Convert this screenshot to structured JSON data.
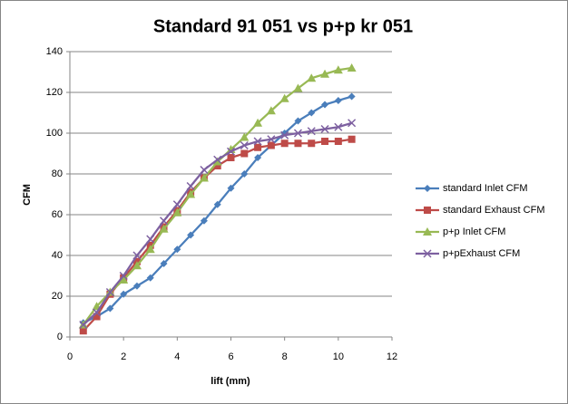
{
  "chart_data": {
    "type": "line",
    "title": "Standard 91 051 vs p+p kr 051",
    "x_label": "lift (mm)",
    "y_label": "CFM",
    "x": [
      0.5,
      1,
      1.5,
      2,
      2.5,
      3,
      3.5,
      4,
      4.5,
      5,
      5.5,
      6,
      6.5,
      7,
      7.5,
      8,
      8.5,
      9,
      9.5,
      10,
      10.5
    ],
    "series": [
      {
        "name": "standard Inlet CFM",
        "color": "#4a7ebb",
        "marker": "diamond",
        "values": [
          7,
          10,
          14,
          21,
          25,
          29,
          36,
          43,
          50,
          57,
          65,
          73,
          80,
          88,
          94,
          100,
          106,
          110,
          114,
          116,
          118
        ]
      },
      {
        "name": "standard Exhaust  CFM",
        "color": "#be4b48",
        "marker": "square",
        "values": [
          3,
          10,
          21,
          29,
          37,
          45,
          54,
          62,
          71,
          78,
          84,
          88,
          90,
          93,
          94,
          95,
          95,
          95,
          96,
          96,
          97
        ]
      },
      {
        "name": "p+p Inlet CFM",
        "color": "#98b954",
        "marker": "triangle",
        "values": [
          6,
          15,
          22,
          28,
          35,
          43,
          53,
          61,
          70,
          78,
          86,
          92,
          98,
          105,
          111,
          117,
          122,
          127,
          129,
          131,
          132
        ]
      },
      {
        "name": "p+pExhaust CFM",
        "color": "#7d60a0",
        "marker": "x",
        "values": [
          6,
          12,
          22,
          30,
          40,
          48,
          57,
          65,
          74,
          82,
          87,
          91,
          94,
          96,
          97,
          99,
          100,
          101,
          102,
          103,
          105
        ]
      }
    ],
    "xlim": [
      0,
      12
    ],
    "xticks": [
      0,
      2,
      4,
      6,
      8,
      10,
      12
    ],
    "ylim": [
      0,
      140
    ],
    "yticks": [
      0,
      20,
      40,
      60,
      80,
      100,
      120,
      140
    ],
    "grid": true,
    "legend": "right"
  }
}
